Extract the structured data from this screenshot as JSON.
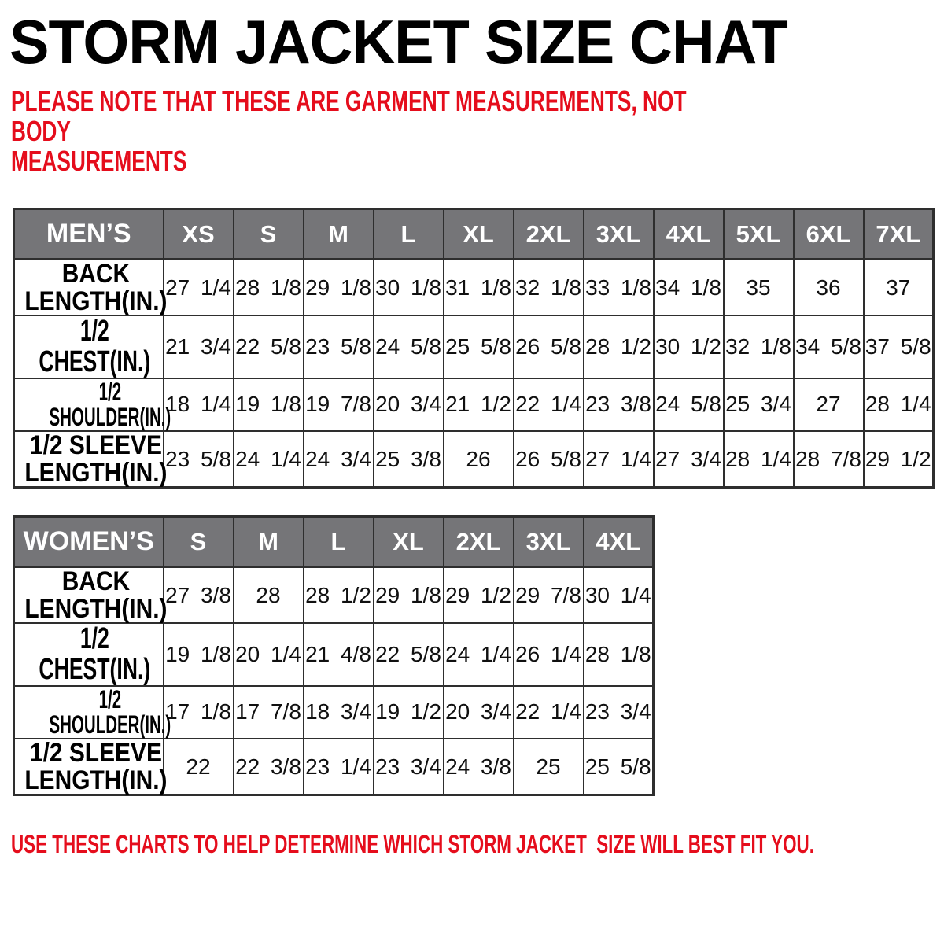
{
  "title": "STORM JACKET SIZE CHAT",
  "top_note": "PLEASE NOTE THAT THESE ARE GARMENT MEASUREMENTS, NOT BODY\nMEASUREMENTS",
  "bottom_note": "USE THESE CHARTS TO HELP DETERMINE WHICH STORM JACKET  SIZE WILL BEST FIT YOU.",
  "colors": {
    "accent_red": "#e50d1c",
    "header_gray": "#757578",
    "border_dark": "#2e2e2e"
  },
  "mens_table": {
    "name": "MEN’S",
    "sizes": [
      "XS",
      "S",
      "M",
      "L",
      "XL",
      "2XL",
      "3XL",
      "4XL",
      "5XL",
      "6XL",
      "7XL"
    ],
    "rows": [
      {
        "label": "BACK\nLENGTH(IN.)",
        "values": [
          "27 1/4",
          "28 1/8",
          "29 1/8",
          "30 1/8",
          "31 1/8",
          "32 1/8",
          "33 1/8",
          "34 1/8",
          "35",
          "36",
          "37"
        ]
      },
      {
        "label": "1/2 CHEST(IN.)",
        "values": [
          "21 3/4",
          "22 5/8",
          "23 5/8",
          "24 5/8",
          "25 5/8",
          "26 5/8",
          "28 1/2",
          "30 1/2",
          "32 1/8",
          "34 5/8",
          "37 5/8"
        ]
      },
      {
        "label": "1/2 SHOULDER(IN.)",
        "values": [
          "18 1/4",
          "19 1/8",
          "19 7/8",
          "20 3/4",
          "21 1/2",
          "22 1/4",
          "23 3/8",
          "24 5/8",
          "25 3/4",
          "27",
          "28 1/4"
        ]
      },
      {
        "label": "1/2 SLEEVE\nLENGTH(IN.)",
        "values": [
          "23 5/8",
          "24 1/4",
          "24 3/4",
          "25 3/8",
          "26",
          "26 5/8",
          "27 1/4",
          "27 3/4",
          "28 1/4",
          "28 7/8",
          "29 1/2"
        ]
      }
    ]
  },
  "womens_table": {
    "name": "WOMEN’S",
    "sizes": [
      "S",
      "M",
      "L",
      "XL",
      "2XL",
      "3XL",
      "4XL"
    ],
    "rows": [
      {
        "label": "BACK\nLENGTH(IN.)",
        "values": [
          "27 3/8",
          "28",
          "28 1/2",
          "29 1/8",
          "29 1/2",
          "29 7/8",
          "30 1/4"
        ]
      },
      {
        "label": "1/2 CHEST(IN.)",
        "values": [
          "19 1/8",
          "20 1/4",
          "21 4/8",
          "22 5/8",
          "24 1/4",
          "26 1/4",
          "28 1/8"
        ]
      },
      {
        "label": "1/2 SHOULDER(IN.)",
        "values": [
          "17 1/8",
          "17 7/8",
          "18 3/4",
          "19 1/2",
          "20 3/4",
          "22 1/4",
          "23 3/4"
        ]
      },
      {
        "label": "1/2 SLEEVE\nLENGTH(IN.)",
        "values": [
          "22",
          "22 3/8",
          "23 1/4",
          "23 3/4",
          "24 3/8",
          "25",
          "25 5/8"
        ]
      }
    ]
  }
}
